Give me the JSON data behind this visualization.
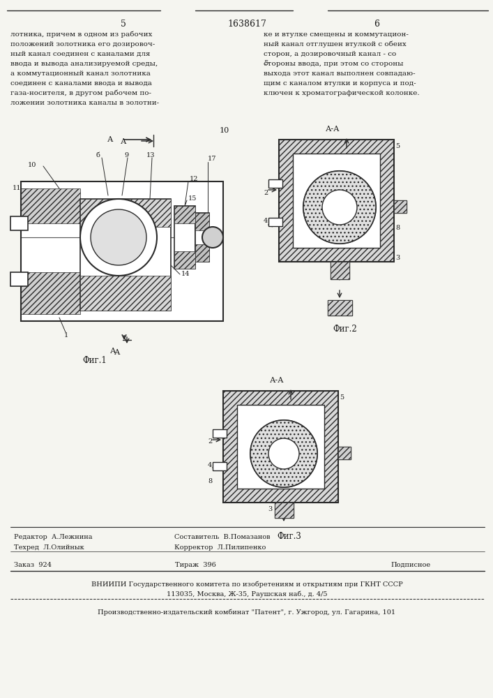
{
  "page_number_left": "5",
  "page_number_center": "1638617",
  "page_number_right": "6",
  "text_left": "лотника, причем в одном из рабочих\nположений золотника его дозировоч-\nный канал соединен с каналами для\nввода и вывода анализируемой среды,\nа коммутационный канал золотника\nсоединен с каналами ввода и вывода\nгаза-носителя, в другом рабочем по-\nложении золотника каналы в золотни-",
  "text_right": "ке и втулке смещены и коммутацион-\nный канал отглушен втулкой с обеих\nсторон, а дозировочный канал - со\nстороны ввода, при этом со стороны\nвыхода этот канал выполнен совпадаю-\nщим с каналом втулки и корпуса и под-\nключен к хроматографической колонке.",
  "fig1_label": "Фиг.1",
  "fig2_label": "Фиг.2",
  "fig3_label": "Фиг.3",
  "section_label": "А-А",
  "editor_line": "Редактор  А.Лежнина",
  "composer_line": "Составитель  В.Помазанов",
  "techred_line": "Техред  Л.Олийнык",
  "corrector_line": "Корректор  Л.Пилипенко",
  "order_line": "Заказ  924",
  "tirage_line": "Тираж  396",
  "signature_line": "Подписное",
  "vniiphi_line": "ВНИИПИ Государственного комитета по изобретениям и открытиям при ГКНТ СССР",
  "address_line": "113035, Москва, Ж-35, Раушская наб., д. 4/5",
  "publisher_line": "Производственно-издательский комбинат \"Патент\", г. Ужгород, ул. Гагарина, 101",
  "bg_color": "#f5f5f0",
  "text_color": "#1a1a1a",
  "line_color": "#2a2a2a",
  "hatch_color": "#333333",
  "number_10": "10"
}
